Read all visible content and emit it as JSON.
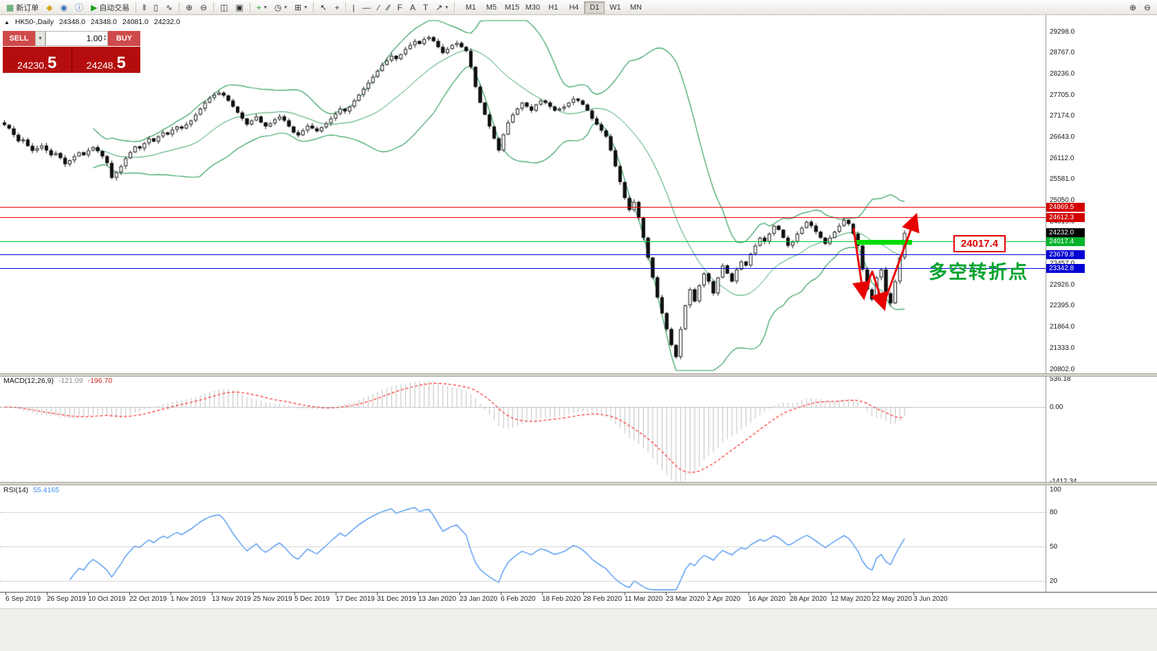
{
  "toolbar": {
    "buttons": [
      {
        "name": "new-order-button",
        "icon": "new-order-icon",
        "glyph": "▦",
        "glyph_color": "#2d8f46",
        "label": "新订单"
      },
      {
        "name": "metaquotes-button",
        "icon": "diamond-icon",
        "glyph": "◆",
        "glyph_color": "#d9a520"
      },
      {
        "name": "accounts-button",
        "icon": "user-icon",
        "glyph": "◉",
        "glyph_color": "#3b6fb5"
      },
      {
        "name": "info-button",
        "icon": "info-icon",
        "glyph": "ⓘ",
        "glyph_color": "#3b6fb5"
      },
      {
        "name": "autotrading-button",
        "icon": "play-icon",
        "glyph": "▶",
        "glyph_color": "#16a416",
        "label": "自动交易"
      },
      {
        "sep": true
      },
      {
        "name": "bar-chart-button",
        "icon": "bar-chart-icon",
        "glyph": "‖"
      },
      {
        "name": "candlestick-chart-button",
        "icon": "candlestick-icon",
        "glyph": "▯"
      },
      {
        "name": "line-chart-button",
        "icon": "line-chart-icon",
        "glyph": "∿"
      },
      {
        "sep": true
      },
      {
        "name": "zoom-in-button",
        "icon": "zoom-in-icon",
        "glyph": "⊕"
      },
      {
        "name": "zoom-out-button",
        "icon": "zoom-out-icon",
        "glyph": "⊖"
      },
      {
        "sep": true
      },
      {
        "name": "tile-windows-button",
        "icon": "tile-windows-icon",
        "glyph": "◫"
      },
      {
        "name": "auto-arrange-button",
        "icon": "arrange-icon",
        "glyph": "▣"
      },
      {
        "sep": true
      },
      {
        "name": "indicators-button",
        "icon": "indicator-plus-icon",
        "glyph": "+",
        "glyph_color": "#13a013",
        "caret": true
      },
      {
        "name": "periods-button",
        "icon": "clock-icon",
        "glyph": "◷",
        "caret": true
      },
      {
        "name": "templates-button",
        "icon": "template-grid-icon",
        "glyph": "⊞",
        "caret": true
      },
      {
        "sep": true
      },
      {
        "name": "cursor-button",
        "icon": "cursor-icon",
        "glyph": "↖"
      },
      {
        "name": "crosshair-button",
        "icon": "crosshair-icon",
        "glyph": "+"
      },
      {
        "sep": true
      },
      {
        "name": "vertical-line-button",
        "icon": "vertical-line-icon",
        "glyph": "|"
      },
      {
        "name": "horizontal-line-button",
        "icon": "horizontal-line-icon",
        "glyph": "—"
      },
      {
        "name": "trendline-button",
        "icon": "trendline-icon",
        "glyph": "∕"
      },
      {
        "name": "channel-button",
        "icon": "channel-icon",
        "glyph": "∕∕"
      },
      {
        "name": "fibonacci-button",
        "icon": "fibonacci-icon",
        "glyph": "F"
      },
      {
        "name": "text-button",
        "icon": "text-icon",
        "glyph": "A"
      },
      {
        "name": "label-button",
        "icon": "label-icon",
        "glyph": "T"
      },
      {
        "name": "arrows-button",
        "icon": "arrow-objects-icon",
        "glyph": "↗",
        "caret": true
      },
      {
        "sep": true
      }
    ],
    "timeframes": [
      "M1",
      "M5",
      "M15",
      "M30",
      "H1",
      "H4",
      "D1",
      "W1",
      "MN"
    ],
    "active_timeframe": "D1",
    "right_buttons": [
      {
        "name": "magnify-in-button",
        "icon": "magnifier-plus-icon",
        "glyph": "⊕"
      },
      {
        "name": "magnify-out-button",
        "icon": "magnifier-minus-icon",
        "glyph": "⊖"
      }
    ]
  },
  "order_panel": {
    "sell_label": "SELL",
    "buy_label": "BUY",
    "lot": "1.00",
    "sell_price_main": "24230.",
    "sell_price_big": "5",
    "buy_price_main": "24248.",
    "buy_price_big": "5"
  },
  "chart": {
    "caption": {
      "triangle": "▲",
      "symbol": "HK50-,Daily",
      "open": "24348.0",
      "high": "24348.0",
      "low": "24081.0",
      "close": "24232.0"
    },
    "price_axis": {
      "labels": [
        "29298.0",
        "28767.0",
        "28236.0",
        "27705.0",
        "27174.0",
        "26643.0",
        "26112.0",
        "25581.0",
        "25050.0",
        "24519.0",
        "23988.0",
        "23457.0",
        "22926.0",
        "22395.0",
        "21864.0",
        "21333.0",
        "20802.0"
      ]
    },
    "annotations": {
      "price_label": "24017.4",
      "note": "多空转折点"
    }
  },
  "macd": {
    "title": "MACD(12,26,9)",
    "value_main": "-121.09",
    "value_signal": "-196.70",
    "axis": [
      "536.18",
      "0.00",
      "-1412.34"
    ]
  },
  "rsi": {
    "title": "RSI(14)",
    "value": "55.4165",
    "axis": [
      "100",
      "80",
      "50",
      "20"
    ],
    "levels": [
      80,
      50,
      20
    ]
  },
  "date_axis": {
    "labels": [
      "6 Sep 2019",
      "26 Sep 2019",
      "10 Oct 2019",
      "22 Oct 2019",
      "1 Nov 2019",
      "13 Nov 2019",
      "25 Nov 2019",
      "5 Dec 2019",
      "17 Dec 2019",
      "31 Dec 2019",
      "13 Jan 2020",
      "23 Jan 2020",
      "6 Feb 2020",
      "18 Feb 2020",
      "28 Feb 2020",
      "11 Mar 2020",
      "23 Mar 2020",
      "2 Apr 2020",
      "16 Apr 2020",
      "28 Apr 2020",
      "12 May 2020",
      "22 May 2020",
      "3 Jun 2020"
    ]
  },
  "chart_data": {
    "type": "candlestick",
    "symbol": "HK50",
    "timeframe": "Daily",
    "current_ohlc": {
      "open": 24348.0,
      "high": 24348.0,
      "low": 24081.0,
      "close": 24232.0
    },
    "ylim": [
      20802.0,
      29298.0
    ],
    "bull_color": "#ffffff",
    "bear_color": "#111111",
    "wick_color": "#111111",
    "closes": [
      26950,
      26860,
      26700,
      26540,
      26580,
      26420,
      26300,
      26360,
      26430,
      26310,
      26190,
      26240,
      26120,
      25960,
      26060,
      26160,
      26260,
      26190,
      26310,
      26390,
      26290,
      26160,
      25990,
      25620,
      25760,
      25910,
      26110,
      26260,
      26410,
      26360,
      26490,
      26610,
      26530,
      26660,
      26760,
      26710,
      26830,
      26910,
      26860,
      26960,
      27060,
      27210,
      27360,
      27510,
      27630,
      27710,
      27760,
      27690,
      27560,
      27410,
      27260,
      27110,
      26960,
      27060,
      27160,
      27010,
      26910,
      26990,
      27090,
      27160,
      27060,
      26910,
      26760,
      26690,
      26810,
      26930,
      26860,
      26790,
      26890,
      26990,
      27110,
      27230,
      27360,
      27290,
      27410,
      27560,
      27710,
      27860,
      28010,
      28160,
      28310,
      28460,
      28570,
      28690,
      28610,
      28730,
      28860,
      28960,
      29060,
      28990,
      29110,
      29160,
      29060,
      28910,
      28760,
      28860,
      28960,
      29010,
      28910,
      28810,
      28410,
      27910,
      27510,
      27210,
      26910,
      26610,
      26310,
      26710,
      27010,
      27210,
      27360,
      27510,
      27410,
      27310,
      27460,
      27560,
      27510,
      27410,
      27310,
      27360,
      27410,
      27510,
      27610,
      27560,
      27460,
      27310,
      27110,
      26960,
      26810,
      26660,
      26310,
      25910,
      25510,
      25110,
      24810,
      25010,
      24610,
      24110,
      23610,
      23110,
      22610,
      22210,
      21810,
      21410,
      21110,
      21810,
      22410,
      22810,
      22510,
      22910,
      23210,
      23010,
      22710,
      23110,
      23410,
      23210,
      23010,
      23310,
      23510,
      23410,
      23710,
      23910,
      24110,
      24010,
      24210,
      24410,
      24310,
      24110,
      23910,
      24010,
      24210,
      24360,
      24510,
      24410,
      24260,
      24110,
      23960,
      24110,
      24260,
      24410,
      24560,
      24460,
      24210,
      23910,
      23310,
      22810,
      22560,
      23110,
      23310,
      22710,
      22460,
      23010,
      23610,
      24232
    ],
    "levels": [
      {
        "value": "24869.5",
        "type": "resistance",
        "tag_bg": "#d40000",
        "line_color": "#e80000",
        "line": true
      },
      {
        "value": "24612.3",
        "type": "resistance",
        "tag_bg": "#d40000",
        "line_color": "#e80000",
        "line": true
      },
      {
        "value": "24232.0",
        "type": "current-price",
        "tag_bg": "#000000",
        "line": false
      },
      {
        "value": "24017.4",
        "type": "support",
        "tag_bg": "#00b22d",
        "line_color": "#00c832",
        "line": true
      },
      {
        "value": "23679.8",
        "type": "support",
        "tag_bg": "#0000d4",
        "line_color": "#0000e8",
        "line": true
      },
      {
        "value": "23342.8",
        "type": "support",
        "tag_bg": "#0000d4",
        "line_color": "#0000e8",
        "line": true
      }
    ],
    "indicators": {
      "bollinger": {
        "period": 20,
        "deviation": 2,
        "color": "#2e9e5b"
      },
      "macd": {
        "fast": 12,
        "slow": 26,
        "signal": 9,
        "main": -121.09,
        "signal_value": -196.7,
        "hist_color": "#bdbdbd",
        "signal_color": "#ff2020"
      },
      "rsi": {
        "period": 14,
        "value": 55.4165,
        "color": "#3e8ef0"
      }
    }
  }
}
